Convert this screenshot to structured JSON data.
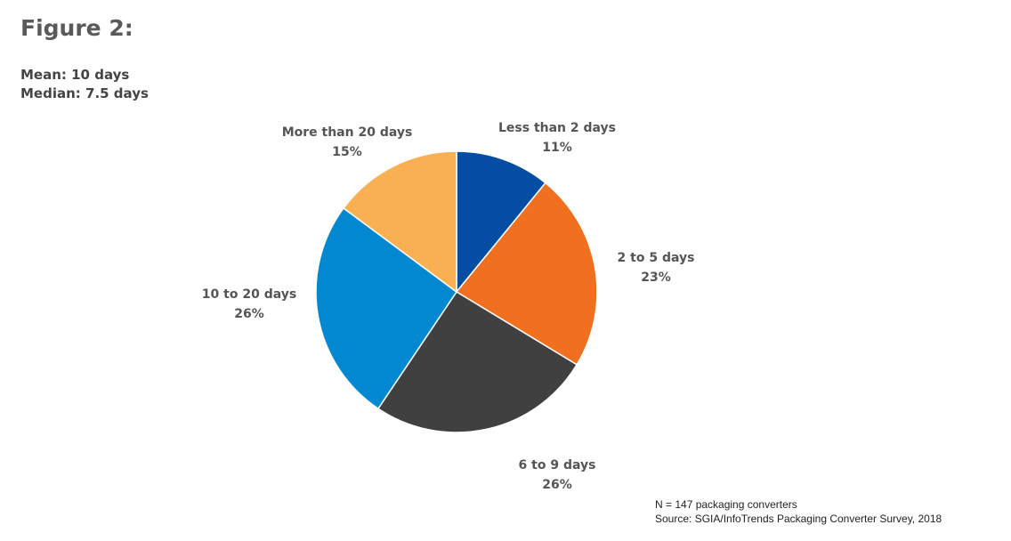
{
  "header": {
    "title": "Figure 2:",
    "mean": "Mean: 10 days",
    "median": "Median: 7.5 days"
  },
  "footer": {
    "n": "N = 147 packaging converters",
    "source": "Source: SGIA/InfoTrends Packaging Converter Survey, 2018"
  },
  "chart_data": {
    "type": "pie",
    "slices": [
      {
        "label": "Less than 2 days",
        "value": 11,
        "display": "11%",
        "color": "#034ea2"
      },
      {
        "label": "2 to 5 days",
        "value": 23,
        "display": "23%",
        "color": "#f07020"
      },
      {
        "label": "6 to 9 days",
        "value": 26,
        "display": "26%",
        "color": "#404041"
      },
      {
        "label": "10 to 20 days",
        "value": 26,
        "display": "26%",
        "color": "#0288d1"
      },
      {
        "label": "More than 20 days",
        "value": 15,
        "display": "15%",
        "color": "#f9b052"
      }
    ],
    "start_angle": "12 o'clock",
    "direction": "clockwise"
  }
}
